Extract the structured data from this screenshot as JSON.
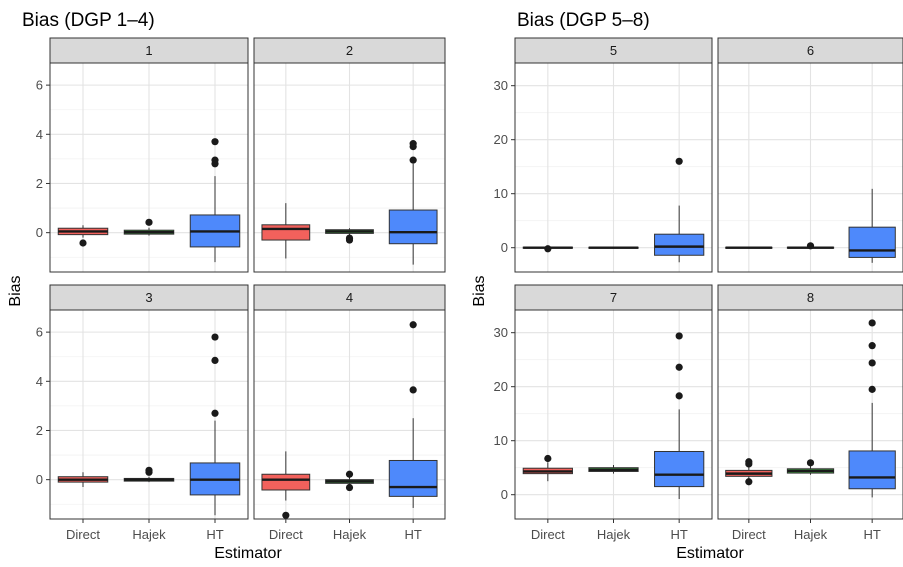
{
  "chart_data": [
    {
      "type": "boxplot",
      "title": "Bias (DGP 1–4)",
      "xlabel": "Estimator",
      "ylabel": "Bias",
      "categories": [
        "Direct",
        "Hajek",
        "HT"
      ],
      "ylim": [
        -1.6,
        6.9
      ],
      "yticks": [
        0,
        2,
        4,
        6
      ],
      "grid": true,
      "facet_strip_color": "#d9d9d9",
      "colors": {
        "Direct": "#f2615c",
        "Hajek": "#3d9e3e",
        "HT": "#4e89fb"
      },
      "panels": [
        {
          "label": "1",
          "boxes": [
            {
              "category": "Direct",
              "q1": -0.08,
              "median": 0.05,
              "q3": 0.18,
              "whisker_low": -0.2,
              "whisker_high": 0.3,
              "outliers": [
                -0.42
              ]
            },
            {
              "category": "Hajek",
              "q1": -0.06,
              "median": 0.02,
              "q3": 0.1,
              "whisker_low": -0.12,
              "whisker_high": 0.2,
              "outliers": [
                0.42
              ]
            },
            {
              "category": "HT",
              "q1": -0.58,
              "median": 0.05,
              "q3": 0.72,
              "whisker_low": -1.2,
              "whisker_high": 2.3,
              "outliers": [
                2.8,
                2.95,
                3.7
              ]
            }
          ]
        },
        {
          "label": "2",
          "boxes": [
            {
              "category": "Direct",
              "q1": -0.3,
              "median": 0.15,
              "q3": 0.32,
              "whisker_low": -1.05,
              "whisker_high": 1.2,
              "outliers": []
            },
            {
              "category": "Hajek",
              "q1": -0.03,
              "median": 0.05,
              "q3": 0.12,
              "whisker_low": -0.15,
              "whisker_high": 0.18,
              "outliers": [
                -0.22,
                -0.3
              ]
            },
            {
              "category": "HT",
              "q1": -0.45,
              "median": 0.02,
              "q3": 0.92,
              "whisker_low": -1.3,
              "whisker_high": 2.8,
              "outliers": [
                2.95,
                3.5,
                3.62
              ]
            }
          ]
        },
        {
          "label": "3",
          "boxes": [
            {
              "category": "Direct",
              "q1": -0.1,
              "median": 0.0,
              "q3": 0.12,
              "whisker_low": -0.3,
              "whisker_high": 0.3,
              "outliers": []
            },
            {
              "category": "Hajek",
              "q1": -0.06,
              "median": 0.0,
              "q3": 0.05,
              "whisker_low": -0.1,
              "whisker_high": 0.12,
              "outliers": [
                0.3,
                0.38
              ]
            },
            {
              "category": "HT",
              "q1": -0.62,
              "median": 0.0,
              "q3": 0.68,
              "whisker_low": -1.45,
              "whisker_high": 2.4,
              "outliers": [
                2.7,
                4.85,
                5.8
              ]
            }
          ]
        },
        {
          "label": "4",
          "boxes": [
            {
              "category": "Direct",
              "q1": -0.42,
              "median": 0.0,
              "q3": 0.22,
              "whisker_low": -0.85,
              "whisker_high": 1.15,
              "outliers": [
                -1.45
              ]
            },
            {
              "category": "Hajek",
              "q1": -0.15,
              "median": -0.07,
              "q3": 0.0,
              "whisker_low": -0.2,
              "whisker_high": 0.1,
              "outliers": [
                0.22,
                -0.32
              ]
            },
            {
              "category": "HT",
              "q1": -0.68,
              "median": -0.3,
              "q3": 0.78,
              "whisker_low": -1.15,
              "whisker_high": 2.5,
              "outliers": [
                3.65,
                6.3
              ]
            }
          ]
        }
      ]
    },
    {
      "type": "boxplot",
      "title": "Bias (DGP 5–8)",
      "xlabel": "Estimator",
      "ylabel": "Bias",
      "categories": [
        "Direct",
        "Hajek",
        "HT"
      ],
      "ylim": [
        -4.5,
        34.2
      ],
      "yticks": [
        0,
        10,
        20,
        30
      ],
      "grid": true,
      "facet_strip_color": "#d9d9d9",
      "colors": {
        "Direct": "#f2615c",
        "Hajek": "#3d9e3e",
        "HT": "#4e89fb"
      },
      "panels": [
        {
          "label": "5",
          "boxes": [
            {
              "category": "Direct",
              "q1": -0.1,
              "median": 0.0,
              "q3": 0.1,
              "whisker_low": -0.2,
              "whisker_high": 0.2,
              "outliers": [
                -0.2
              ]
            },
            {
              "category": "Hajek",
              "q1": -0.08,
              "median": 0.0,
              "q3": 0.08,
              "whisker_low": -0.15,
              "whisker_high": 0.15,
              "outliers": []
            },
            {
              "category": "HT",
              "q1": -1.4,
              "median": 0.2,
              "q3": 2.5,
              "whisker_low": -2.7,
              "whisker_high": 7.8,
              "outliers": [
                16.0
              ]
            }
          ]
        },
        {
          "label": "6",
          "boxes": [
            {
              "category": "Direct",
              "q1": -0.08,
              "median": 0.0,
              "q3": 0.08,
              "whisker_low": -0.15,
              "whisker_high": 0.15,
              "outliers": []
            },
            {
              "category": "Hajek",
              "q1": -0.1,
              "median": 0.0,
              "q3": 0.1,
              "whisker_low": -0.2,
              "whisker_high": 0.2,
              "outliers": [
                0.35
              ]
            },
            {
              "category": "HT",
              "q1": -1.8,
              "median": -0.5,
              "q3": 3.8,
              "whisker_low": -2.8,
              "whisker_high": 10.9,
              "outliers": []
            }
          ]
        },
        {
          "label": "7",
          "boxes": [
            {
              "category": "Direct",
              "q1": 3.9,
              "median": 4.3,
              "q3": 4.9,
              "whisker_low": 2.5,
              "whisker_high": 6.0,
              "outliers": [
                6.7
              ]
            },
            {
              "category": "Hajek",
              "q1": 4.3,
              "median": 4.6,
              "q3": 5.0,
              "whisker_low": 3.9,
              "whisker_high": 5.5,
              "outliers": []
            },
            {
              "category": "HT",
              "q1": 1.5,
              "median": 3.7,
              "q3": 8.0,
              "whisker_low": -0.8,
              "whisker_high": 15.8,
              "outliers": [
                18.3,
                23.6,
                29.4
              ]
            }
          ]
        },
        {
          "label": "8",
          "boxes": [
            {
              "category": "Direct",
              "q1": 3.4,
              "median": 3.9,
              "q3": 4.5,
              "whisker_low": 2.8,
              "whisker_high": 5.2,
              "outliers": [
                2.4,
                5.7,
                6.1
              ]
            },
            {
              "category": "Hajek",
              "q1": 4.0,
              "median": 4.4,
              "q3": 4.8,
              "whisker_low": 3.7,
              "whisker_high": 5.5,
              "outliers": [
                5.9
              ]
            },
            {
              "category": "HT",
              "q1": 1.1,
              "median": 3.2,
              "q3": 8.1,
              "whisker_low": -0.5,
              "whisker_high": 17.0,
              "outliers": [
                19.5,
                24.4,
                27.6,
                31.8
              ]
            }
          ]
        }
      ]
    }
  ]
}
